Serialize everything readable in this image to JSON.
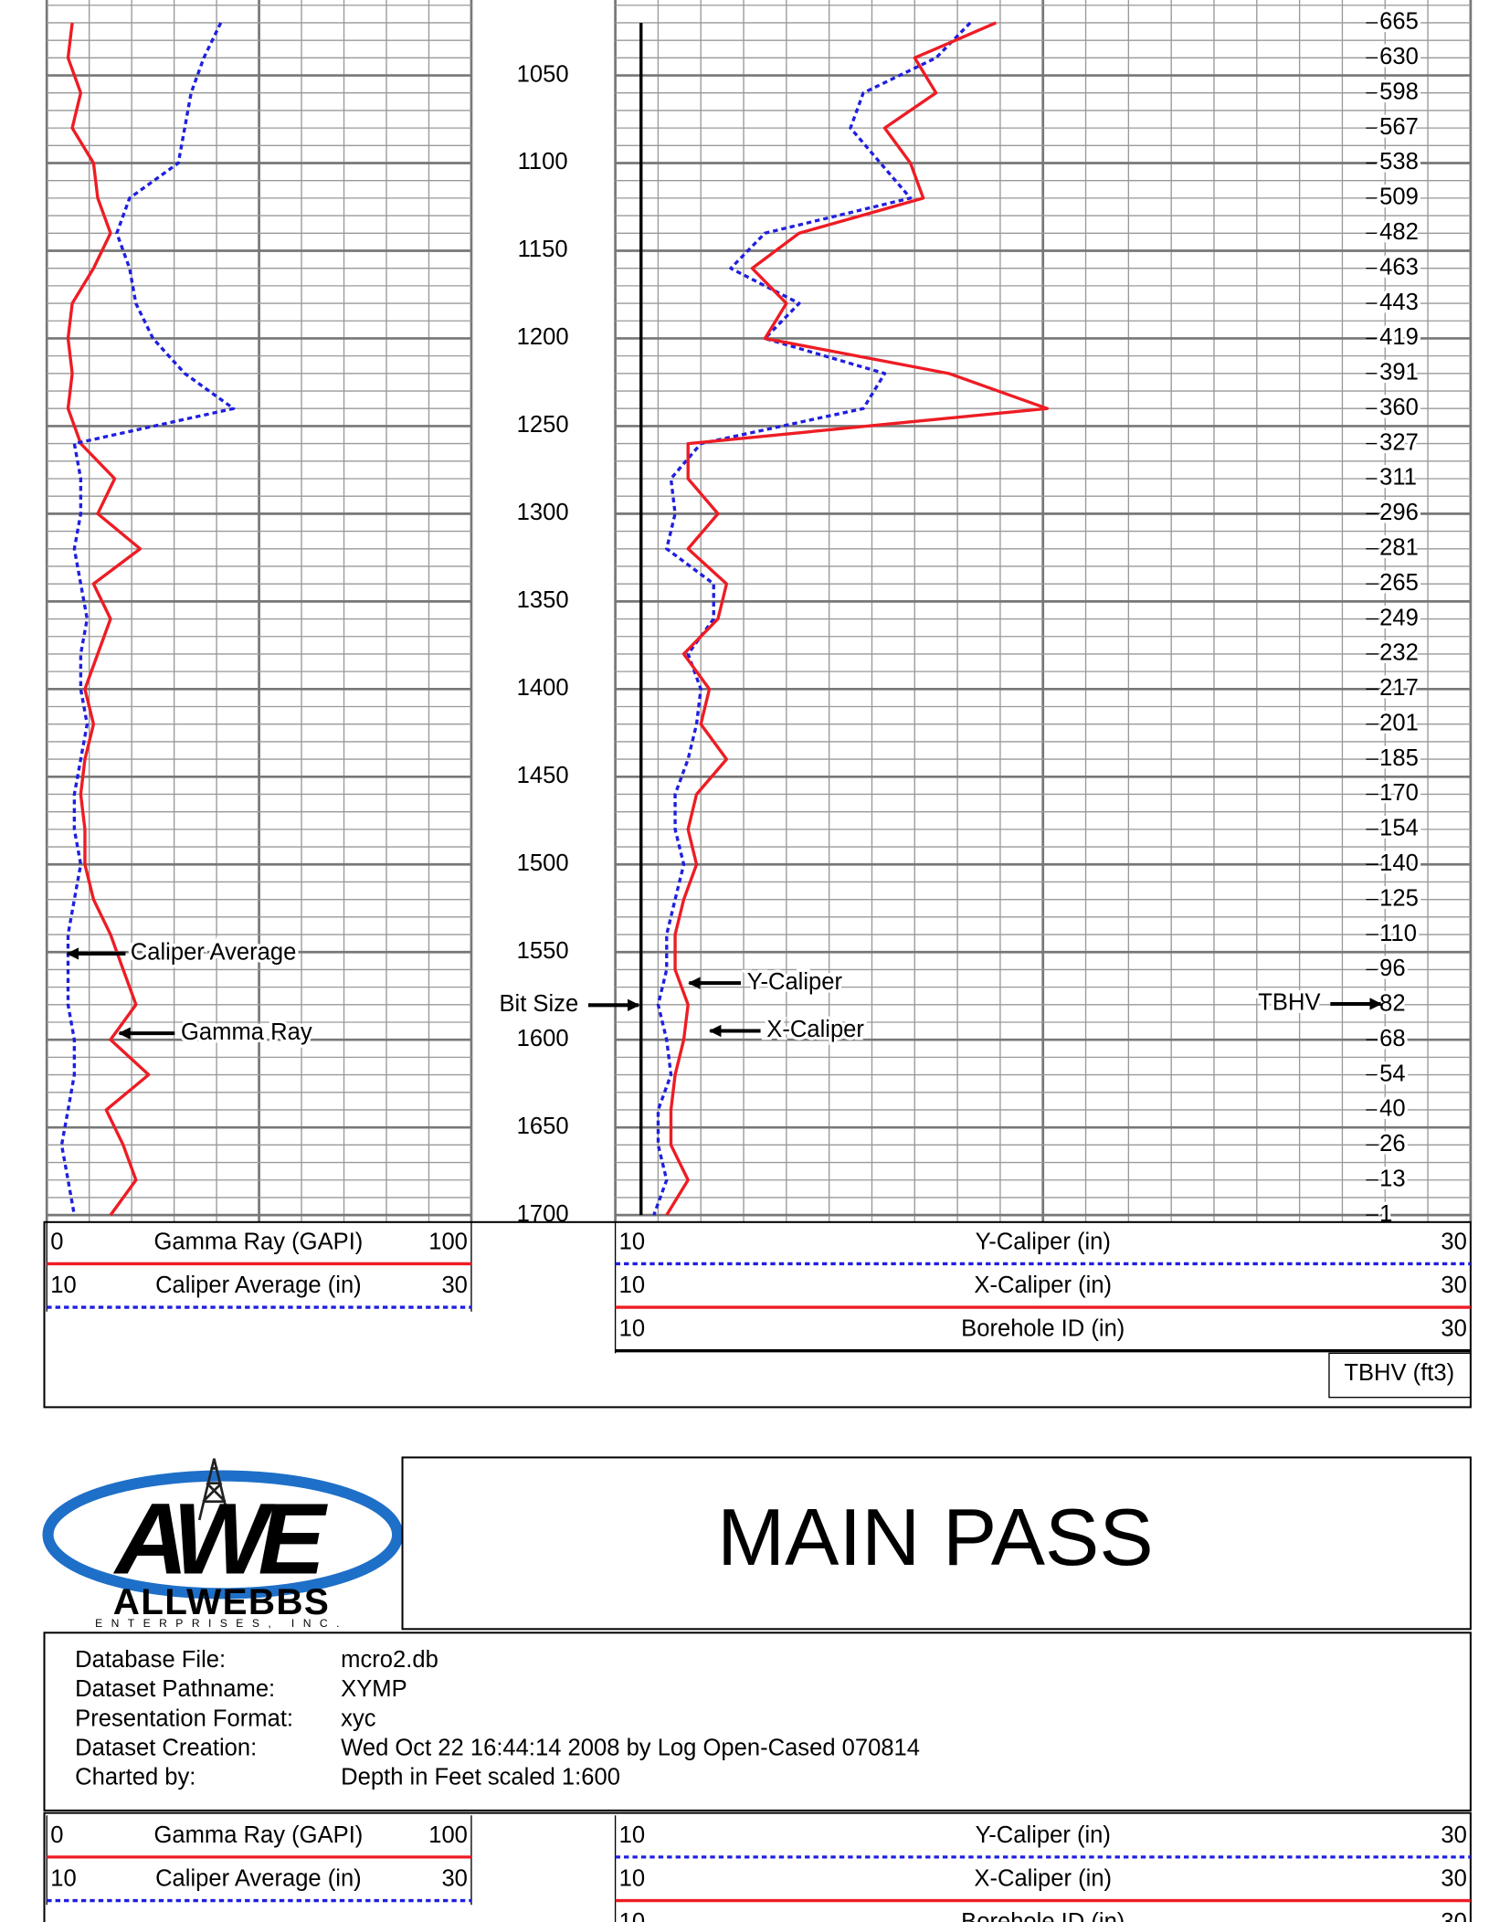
{
  "chart_data": [
    {
      "type": "line",
      "orientation": "vertical",
      "ylim": [
        1007,
        1704
      ],
      "yticks": [
        1050,
        1100,
        1150,
        1200,
        1250,
        1300,
        1350,
        1400,
        1450,
        1500,
        1550,
        1600,
        1650,
        1700
      ],
      "grid": true,
      "depths": [
        1020,
        1040,
        1060,
        1080,
        1100,
        1120,
        1140,
        1160,
        1180,
        1200,
        1220,
        1240,
        1260,
        1280,
        1300,
        1320,
        1340,
        1360,
        1380,
        1400,
        1420,
        1440,
        1460,
        1480,
        1500,
        1520,
        1540,
        1560,
        1580,
        1600,
        1620,
        1640,
        1660,
        1680,
        1700
      ],
      "series": [
        {
          "name": "Gamma Ray (GAPI)",
          "color": "#ee1c24",
          "style": "solid",
          "xlim": [
            0,
            100
          ],
          "values": [
            6,
            5,
            8,
            6,
            11,
            12,
            15,
            11,
            6,
            5,
            6,
            5,
            8,
            16,
            12,
            22,
            11,
            15,
            12,
            9,
            11,
            9,
            8,
            9,
            9,
            11,
            15,
            18,
            21,
            15,
            24,
            14,
            18,
            21,
            15
          ]
        },
        {
          "name": "Caliper Average (in)",
          "color": "#1f1fe0",
          "style": "dashed",
          "xlim": [
            10,
            30
          ],
          "values": [
            18.2,
            17.4,
            16.8,
            16.5,
            16.2,
            13.9,
            13.3,
            13.9,
            14.2,
            15.0,
            16.5,
            18.8,
            11.3,
            11.6,
            11.6,
            11.3,
            11.6,
            11.9,
            11.6,
            11.6,
            11.9,
            11.6,
            11.3,
            11.3,
            11.6,
            11.3,
            11.0,
            11.0,
            11.0,
            11.3,
            11.3,
            11.0,
            10.7,
            11.0,
            11.3
          ]
        }
      ],
      "annotations": [
        "Caliper Average",
        "Gamma Ray"
      ]
    },
    {
      "type": "line",
      "orientation": "vertical",
      "ylim": [
        1007,
        1704
      ],
      "yticks": [
        1050,
        1100,
        1150,
        1200,
        1250,
        1300,
        1350,
        1400,
        1450,
        1500,
        1550,
        1600,
        1650,
        1700
      ],
      "grid": true,
      "depths": [
        1020,
        1040,
        1060,
        1080,
        1100,
        1120,
        1140,
        1160,
        1180,
        1200,
        1220,
        1240,
        1260,
        1280,
        1300,
        1320,
        1340,
        1360,
        1380,
        1400,
        1420,
        1440,
        1460,
        1480,
        1500,
        1520,
        1540,
        1560,
        1580,
        1600,
        1620,
        1640,
        1660,
        1680,
        1700
      ],
      "series": [
        {
          "name": "Y-Caliper (in)",
          "color": "#1f1fe0",
          "style": "dashed",
          "xlim": [
            10,
            30
          ],
          "values": [
            18.3,
            17.5,
            15.8,
            15.5,
            16.2,
            16.9,
            13.5,
            12.7,
            14.3,
            13.5,
            16.3,
            15.8,
            12.0,
            11.3,
            11.4,
            11.2,
            12.3,
            12.3,
            11.7,
            12.0,
            11.9,
            11.7,
            11.4,
            11.4,
            11.6,
            11.4,
            11.2,
            11.2,
            11.0,
            11.2,
            11.3,
            11.0,
            11.0,
            11.2,
            10.9
          ]
        },
        {
          "name": "X-Caliper (in)",
          "color": "#ee1c24",
          "style": "solid",
          "xlim": [
            10,
            30
          ],
          "values": [
            18.9,
            17.0,
            17.5,
            16.3,
            16.9,
            17.2,
            14.3,
            13.2,
            14.0,
            13.5,
            17.8,
            20.1,
            11.7,
            11.7,
            12.4,
            11.7,
            12.6,
            12.4,
            11.6,
            12.2,
            12.0,
            12.6,
            11.9,
            11.7,
            11.9,
            11.6,
            11.4,
            11.4,
            11.7,
            11.6,
            11.4,
            11.3,
            11.3,
            11.7,
            11.2
          ]
        },
        {
          "name": "Borehole ID (in)",
          "color": "#000000",
          "style": "solid",
          "xlim": [
            10,
            30
          ],
          "values": [
            10.6,
            10.6,
            10.6,
            10.6,
            10.6,
            10.6,
            10.6,
            10.6,
            10.6,
            10.6,
            10.6,
            10.6,
            10.6,
            10.6,
            10.6,
            10.6,
            10.6,
            10.6,
            10.6,
            10.6,
            10.6,
            10.6,
            10.6,
            10.6,
            10.6,
            10.6,
            10.6,
            10.6,
            10.6,
            10.6,
            10.6,
            10.6,
            10.6,
            10.6,
            10.6
          ]
        }
      ],
      "annotations": [
        "Bit Size",
        "Y-Caliper",
        "X-Caliper",
        "TBHV"
      ],
      "tbhv": {
        "name": "TBHV (ft3)",
        "depths": [
          1020,
          1040,
          1060,
          1080,
          1100,
          1120,
          1140,
          1160,
          1180,
          1200,
          1220,
          1240,
          1260,
          1280,
          1300,
          1320,
          1340,
          1360,
          1380,
          1400,
          1420,
          1440,
          1460,
          1480,
          1500,
          1520,
          1540,
          1560,
          1580,
          1600,
          1620,
          1640,
          1660,
          1680,
          1700
        ],
        "values": [
          665,
          630,
          598,
          567,
          538,
          509,
          482,
          463,
          443,
          419,
          391,
          360,
          327,
          311,
          296,
          281,
          265,
          249,
          232,
          217,
          201,
          185,
          170,
          154,
          140,
          125,
          110,
          96,
          82,
          68,
          54,
          40,
          26,
          13,
          1
        ]
      }
    }
  ],
  "header": {
    "title": "MAIN PASS",
    "logo": {
      "mark": "AWE",
      "name": "ALLWEBBS",
      "tagline": "ENTERPRISES, INC."
    }
  },
  "info": [
    {
      "label": "Database File:",
      "value": "mcro2.db"
    },
    {
      "label": "Dataset Pathname:",
      "value": "XYMP"
    },
    {
      "label": "Presentation Format:",
      "value": "xyc"
    },
    {
      "label": "Dataset Creation:",
      "value": "Wed Oct 22 16:44:14 2008 by Log Open-Cased 070814"
    },
    {
      "label": "Charted by:",
      "value": "Depth in Feet scaled 1:600"
    }
  ]
}
